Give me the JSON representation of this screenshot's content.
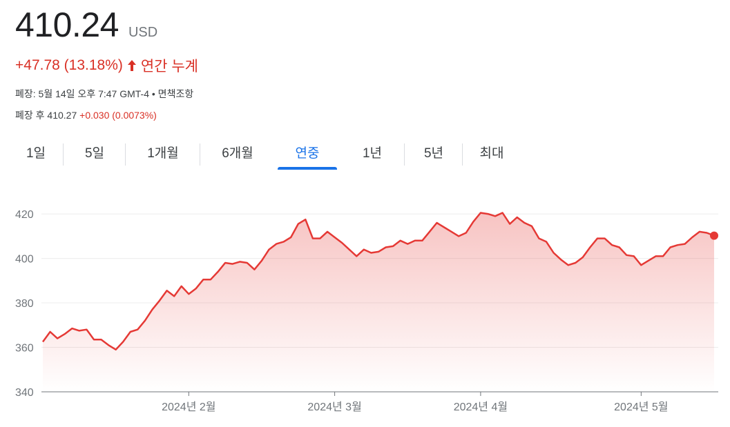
{
  "quote": {
    "price": "410.24",
    "currency": "USD",
    "change": "+47.78 (13.18%)",
    "period": "연간 누계",
    "close_label": "폐장: 5월 14일 오후 7:47 GMT-4 • 면책조항",
    "after_label": "폐장 후 410.27",
    "after_change": "+0.030 (0.0073%)"
  },
  "colors": {
    "accent_red": "#d93025",
    "accent_blue": "#1a73e8",
    "line_red": "#e53935"
  },
  "tabs": [
    {
      "label": "1일",
      "active": false
    },
    {
      "label": "5일",
      "active": false
    },
    {
      "label": "1개월",
      "active": false
    },
    {
      "label": "6개월",
      "active": false
    },
    {
      "label": "연중",
      "active": true
    },
    {
      "label": "1년",
      "active": false
    },
    {
      "label": "5년",
      "active": false
    },
    {
      "label": "최대",
      "active": false
    }
  ],
  "icons": {
    "change_arrow": "arrow-up-icon"
  },
  "chart_data": {
    "type": "area",
    "ylim": [
      340,
      425
    ],
    "yticks": [
      420,
      400,
      380,
      360,
      340
    ],
    "x_labels": [
      "2024년 2월",
      "2024년 3월",
      "2024년 4월",
      "2024년 5월"
    ],
    "x_label_index": [
      20,
      40,
      60,
      82
    ],
    "grid": true,
    "values": [
      362.5,
      367,
      364,
      366,
      368.5,
      367.5,
      368,
      363.5,
      363.5,
      361,
      359,
      362.5,
      367,
      368,
      372,
      377,
      381,
      385.5,
      383,
      387.5,
      384,
      386.5,
      390.5,
      390.5,
      394,
      398,
      397.5,
      398.5,
      398,
      395,
      399,
      404,
      406.5,
      407.5,
      409.5,
      415.5,
      417.5,
      409,
      409,
      412,
      409.5,
      407,
      404,
      401,
      404,
      402.5,
      403,
      405,
      405.5,
      408,
      406.5,
      408,
      408,
      412,
      416,
      414,
      412,
      410,
      411.5,
      416.5,
      420.5,
      420,
      419,
      420.5,
      415.5,
      418.5,
      416,
      414.5,
      409,
      407.5,
      402.5,
      399.5,
      397,
      398,
      400.5,
      405,
      409,
      409,
      406,
      405,
      401.5,
      401,
      397,
      399,
      401,
      401,
      405,
      406,
      406.5,
      409.5,
      412,
      411.5,
      410.24
    ]
  }
}
